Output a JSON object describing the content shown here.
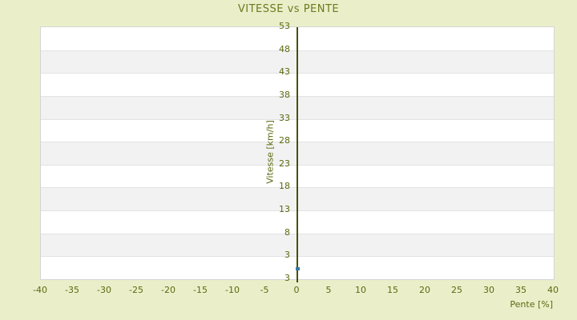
{
  "chart_data": {
    "type": "scatter",
    "title": "VITESSE vs PENTE",
    "xlabel": "Pente [%]",
    "ylabel": "Vitesse [km/h]",
    "x_tick_labels": [
      "-40",
      "-35",
      "-30",
      "-25",
      "-20",
      "-15",
      "-10",
      "-5",
      "0",
      "5",
      "10",
      "15",
      "20",
      "25",
      "30",
      "35",
      "40"
    ],
    "y_tick_labels_top_to_bottom": [
      "53",
      "48",
      "43",
      "38",
      "33",
      "28",
      "23",
      "18",
      "13",
      "8",
      "3",
      "3"
    ],
    "xlim": [
      -40,
      40
    ],
    "grid": "horizontal-bands-only",
    "legend": "none",
    "vertical_axis_line_at_x": 0,
    "series": [
      {
        "name": "vitesse",
        "marker": "square",
        "points": [
          {
            "x": 0,
            "y": 0.5,
            "x_frac": 0.5,
            "y_frac": 0.96
          }
        ]
      }
    ],
    "colors": {
      "background": "#eaefca",
      "title_text": "#6b7a1e",
      "tick_text": "#5d680f",
      "axis_line": "#474f08",
      "plot_border": "#d4d4d4",
      "band_light": "#ffffff",
      "band_dark": "#f2f2f2",
      "gridline": "#e2e2e2",
      "point": "#3878a3"
    }
  }
}
